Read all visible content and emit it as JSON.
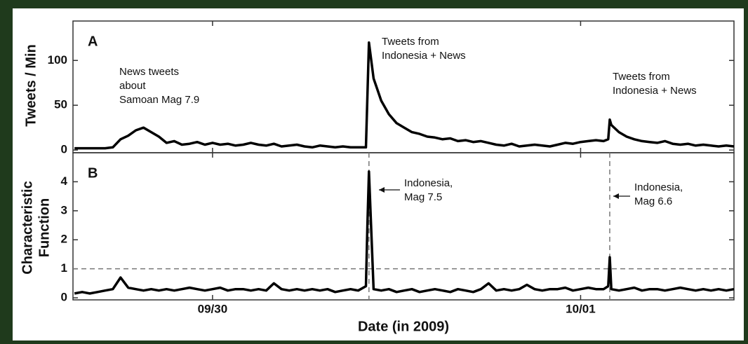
{
  "chart_data": [
    {
      "type": "line",
      "panel": "A",
      "ylabel": [
        "Tweets / Min"
      ],
      "color": "#000000",
      "x": [
        -9,
        -8.5,
        -8,
        -7.5,
        -7,
        -6.5,
        -6,
        -5.5,
        -5,
        -4.5,
        -4,
        -3.5,
        -3,
        -2.5,
        -2,
        -1.5,
        -1,
        -0.5,
        0,
        0.5,
        1,
        1.5,
        2,
        2.5,
        3,
        3.5,
        4,
        4.5,
        5,
        5.5,
        6,
        6.5,
        7,
        7.5,
        8,
        8.5,
        9,
        9.5,
        10,
        10.1,
        10.2,
        10.5,
        11,
        11.5,
        12,
        12.5,
        13,
        13.5,
        14,
        14.5,
        15,
        15.5,
        16,
        16.5,
        17,
        17.5,
        18,
        18.5,
        19,
        19.5,
        20,
        20.5,
        21,
        21.5,
        22,
        22.5,
        23,
        23.5,
        24,
        24.5,
        25,
        25.5,
        25.8,
        25.9,
        26,
        26.5,
        27,
        27.5,
        28,
        28.5,
        29,
        29.5,
        30,
        30.5,
        31,
        31.5,
        32,
        32.5,
        33,
        33.5,
        34
      ],
      "values": [
        2,
        2,
        2,
        2,
        2,
        3,
        12,
        16,
        22,
        25,
        20,
        15,
        8,
        10,
        6,
        7,
        9,
        6,
        8,
        6,
        7,
        5,
        6,
        8,
        6,
        5,
        7,
        4,
        5,
        6,
        4,
        3,
        5,
        4,
        3,
        4,
        3,
        3,
        3,
        60,
        120,
        80,
        55,
        40,
        30,
        25,
        20,
        18,
        15,
        14,
        12,
        13,
        10,
        11,
        9,
        10,
        8,
        6,
        5,
        7,
        4,
        5,
        6,
        5,
        4,
        6,
        8,
        7,
        9,
        10,
        11,
        10,
        12,
        34,
        28,
        20,
        15,
        12,
        10,
        9,
        8,
        10,
        7,
        6,
        7,
        5,
        6,
        5,
        4,
        5,
        4
      ],
      "xlim": [
        -9.1,
        34.0
      ],
      "ylim": [
        -3,
        144
      ],
      "yticks": [
        0,
        50,
        100
      ],
      "annotations": [
        {
          "lines": [
            "News tweets",
            "about",
            "Samoan Mag 7.9"
          ]
        },
        {
          "lines": [
            "Tweets from",
            "Indonesia + News"
          ]
        },
        {
          "lines": [
            "Tweets from",
            "Indonesia + News"
          ]
        }
      ]
    },
    {
      "type": "line",
      "panel": "B",
      "ylabel": [
        "Characteristic",
        "Function"
      ],
      "color": "#000000",
      "x": [
        -9,
        -8.5,
        -8,
        -7.5,
        -7,
        -6.5,
        -6,
        -5.5,
        -5,
        -4.5,
        -4,
        -3.5,
        -3,
        -2.5,
        -2,
        -1.5,
        -1,
        -0.5,
        0,
        0.5,
        1,
        1.5,
        2,
        2.5,
        3,
        3.5,
        4,
        4.5,
        5,
        5.5,
        6,
        6.5,
        7,
        7.5,
        8,
        8.5,
        9,
        9.5,
        10,
        10.1,
        10.2,
        10.5,
        11,
        11.5,
        12,
        12.5,
        13,
        13.5,
        14,
        14.5,
        15,
        15.5,
        16,
        16.5,
        17,
        17.5,
        18,
        18.5,
        19,
        19.5,
        20,
        20.5,
        21,
        21.5,
        22,
        22.5,
        23,
        23.5,
        24,
        24.5,
        25,
        25.5,
        25.8,
        25.9,
        26,
        26.5,
        27,
        27.5,
        28,
        28.5,
        29,
        29.5,
        30,
        30.5,
        31,
        31.5,
        32,
        32.5,
        33,
        33.5,
        34
      ],
      "values": [
        0.15,
        0.2,
        0.15,
        0.2,
        0.25,
        0.3,
        0.7,
        0.35,
        0.3,
        0.25,
        0.3,
        0.25,
        0.3,
        0.25,
        0.3,
        0.35,
        0.3,
        0.25,
        0.3,
        0.35,
        0.25,
        0.3,
        0.3,
        0.25,
        0.3,
        0.25,
        0.5,
        0.3,
        0.25,
        0.3,
        0.25,
        0.3,
        0.25,
        0.3,
        0.2,
        0.25,
        0.3,
        0.25,
        0.4,
        2.5,
        4.35,
        0.3,
        0.25,
        0.3,
        0.2,
        0.25,
        0.3,
        0.2,
        0.25,
        0.3,
        0.25,
        0.2,
        0.3,
        0.25,
        0.2,
        0.3,
        0.5,
        0.25,
        0.3,
        0.25,
        0.3,
        0.45,
        0.3,
        0.25,
        0.3,
        0.3,
        0.35,
        0.25,
        0.3,
        0.35,
        0.3,
        0.3,
        0.4,
        1.4,
        0.3,
        0.25,
        0.3,
        0.35,
        0.25,
        0.3,
        0.3,
        0.25,
        0.3,
        0.35,
        0.3,
        0.25,
        0.3,
        0.25,
        0.3,
        0.25,
        0.3
      ],
      "xlim": [
        -9.1,
        34.0
      ],
      "ylim": [
        -0.07,
        5
      ],
      "yticks": [
        0,
        1,
        2,
        3,
        4
      ],
      "threshold": 1,
      "xticks": [
        {
          "value": 0,
          "label": "09/30"
        },
        {
          "value": 24,
          "label": "10/01"
        }
      ],
      "xlabel": "Date (in 2009)",
      "annotations": [
        {
          "lines": [
            "Indonesia,",
            "Mag 7.5"
          ]
        },
        {
          "lines": [
            "Indonesia,",
            "Mag 6.6"
          ]
        }
      ]
    }
  ]
}
